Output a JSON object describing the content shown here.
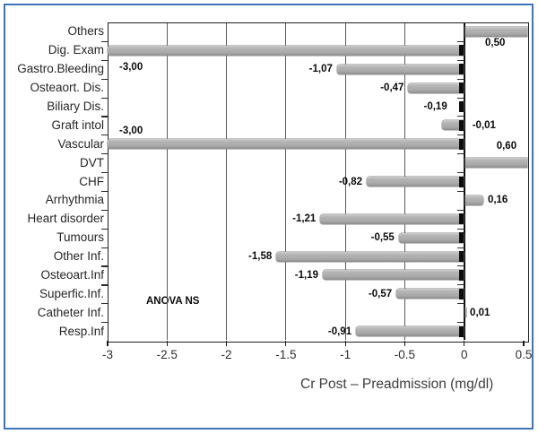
{
  "frame_color": "#4273b6",
  "chart_data": {
    "type": "bar",
    "orientation": "horizontal",
    "xlabel": "Cr Post – Preadmission (mg/dl)",
    "annotation": "ANOVA NS",
    "xlim": [
      -3,
      0.53
    ],
    "grid": "vertical gridlines every 0.5",
    "legend": "none",
    "bar_color": "#ababab",
    "bar_cap_color": "#0d0d0d",
    "categories": [
      "Others",
      "Dig. Exam",
      "Gastro.Bleeding",
      "Osteaort. Dis.",
      "Biliary Dis.",
      "Graft intol",
      "Vascular",
      "DVT",
      "CHF",
      "Arrhythmia",
      "Heart disorder",
      "Tumours",
      "Other Inf.",
      "Osteoart.Inf",
      "Superfic.Inf.",
      "Catheter Inf.",
      "Resp.Inf"
    ],
    "values": [
      0.5,
      -3.0,
      -1.07,
      -0.47,
      -0.19,
      -0.01,
      -3.0,
      0.6,
      -0.82,
      0.16,
      -1.21,
      -0.55,
      -1.58,
      -1.19,
      -0.57,
      0.01,
      -0.91
    ],
    "data_labels": [
      "0,50",
      "-3,00",
      "-1,07",
      "-0,47",
      "-0,19",
      "-0,01",
      "-3,00",
      "0,60",
      "-0,82",
      "0,16",
      "-1,21",
      "-0,55",
      "-1,58",
      "-1,19",
      "-0,57",
      "0,01",
      "-0,91"
    ],
    "x_ticks": [
      {
        "v": -3,
        "label": "-3"
      },
      {
        "v": -2.5,
        "label": "-2.5"
      },
      {
        "v": -2,
        "label": "-2"
      },
      {
        "v": -1.5,
        "label": "-1.5"
      },
      {
        "v": -1,
        "label": "-1"
      },
      {
        "v": -0.5,
        "label": "-0.5"
      },
      {
        "v": 0,
        "label": "0"
      },
      {
        "v": 0.5,
        "label": "0.5"
      }
    ]
  }
}
